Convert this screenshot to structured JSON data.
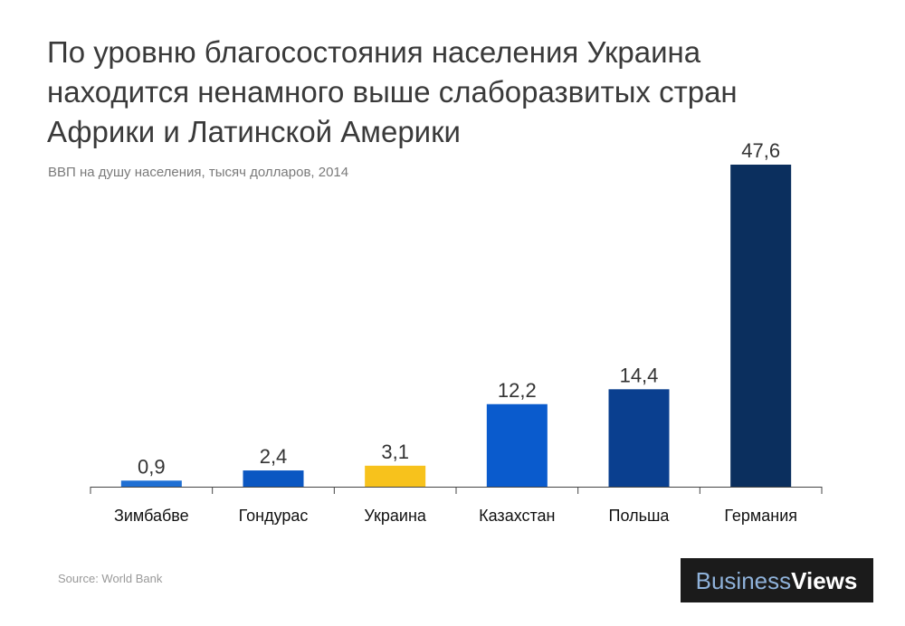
{
  "chart_data": {
    "type": "bar",
    "title": [
      "По уровню благосостояния населения Украина",
      "находится ненамного выше слаборазвитых стран",
      "Африки и Латинской Америки"
    ],
    "subtitle": "ВВП на душу населения, тысяч долларов, 2014",
    "categories": [
      "Зимбабве",
      "Гондурас",
      "Украина",
      "Казахстан",
      "Польша",
      "Германия"
    ],
    "values": [
      0.9,
      2.4,
      3.1,
      12.2,
      14.4,
      47.6
    ],
    "value_labels": [
      "0,9",
      "2,4",
      "3,1",
      "12,2",
      "14,4",
      "47,6"
    ],
    "colors": [
      "#1f6fd3",
      "#0b57c2",
      "#f7c21c",
      "#0a5bcd",
      "#0a3f8f",
      "#0b2f5e"
    ],
    "source": "Source: World Bank",
    "brand": [
      "Business",
      "Views"
    ]
  }
}
